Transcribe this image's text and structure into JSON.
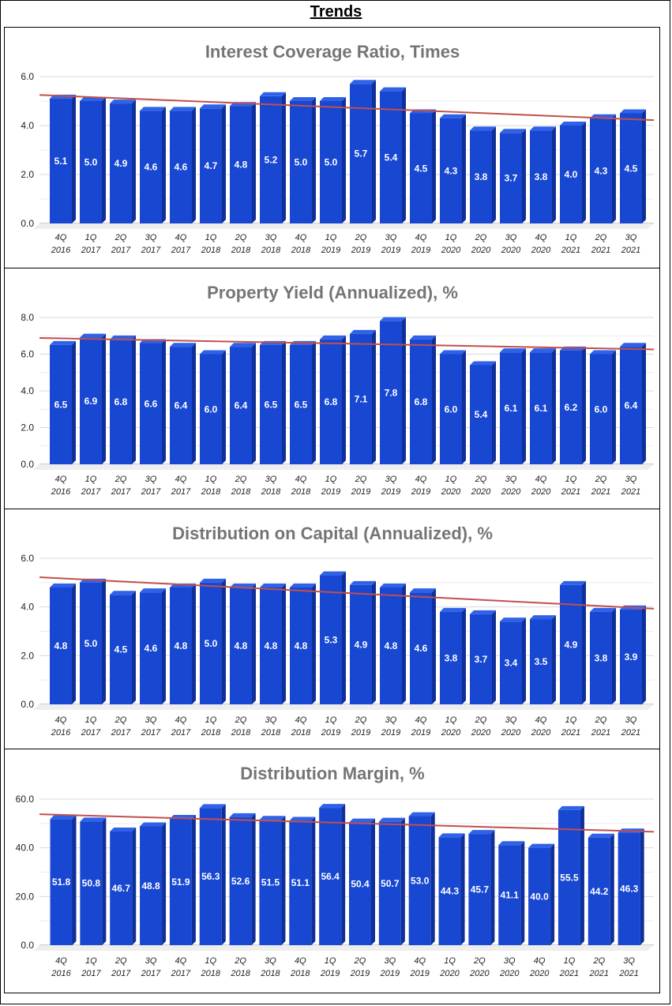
{
  "page": {
    "title": "Trends"
  },
  "colors": {
    "bar_front": "#1847d1",
    "bar_top": "#2f62e8",
    "bar_side": "#0f2f99",
    "trend": "#c0504d",
    "grid": "#d9d9d9"
  },
  "quarters": [
    [
      "4Q",
      "2016"
    ],
    [
      "1Q",
      "2017"
    ],
    [
      "2Q",
      "2017"
    ],
    [
      "3Q",
      "2017"
    ],
    [
      "4Q",
      "2017"
    ],
    [
      "1Q",
      "2018"
    ],
    [
      "2Q",
      "2018"
    ],
    [
      "3Q",
      "2018"
    ],
    [
      "4Q",
      "2018"
    ],
    [
      "1Q",
      "2019"
    ],
    [
      "2Q",
      "2019"
    ],
    [
      "3Q",
      "2019"
    ],
    [
      "4Q",
      "2019"
    ],
    [
      "1Q",
      "2020"
    ],
    [
      "2Q",
      "2020"
    ],
    [
      "3Q",
      "2020"
    ],
    [
      "4Q",
      "2020"
    ],
    [
      "1Q",
      "2021"
    ],
    [
      "2Q",
      "2021"
    ],
    [
      "3Q",
      "2021"
    ]
  ],
  "chart_data": [
    {
      "type": "bar",
      "title": "Interest Coverage Ratio, Times",
      "ylim": [
        0,
        6
      ],
      "yticks": [
        "0.0",
        "2.0",
        "4.0",
        "6.0"
      ],
      "ytick_values": [
        0,
        2,
        4,
        6
      ],
      "values": [
        5.1,
        5.0,
        4.9,
        4.6,
        4.6,
        4.7,
        4.8,
        5.2,
        5.0,
        5.0,
        5.7,
        5.4,
        4.5,
        4.3,
        3.8,
        3.7,
        3.8,
        4.0,
        4.3,
        4.5
      ],
      "labels": [
        "5.1",
        "5.0",
        "4.9",
        "4.6",
        "4.6",
        "4.7",
        "4.8",
        "5.2",
        "5.0",
        "5.0",
        "5.7",
        "5.4",
        "4.5",
        "4.3",
        "3.8",
        "3.7",
        "3.8",
        "4.0",
        "4.3",
        "4.5"
      ],
      "trendline": [
        5.25,
        4.22
      ]
    },
    {
      "type": "bar",
      "title": "Property Yield (Annualized), %",
      "ylim": [
        0,
        8
      ],
      "yticks": [
        "0.0",
        "2.0",
        "4.0",
        "6.0",
        "8.0"
      ],
      "ytick_values": [
        0,
        2,
        4,
        6,
        8
      ],
      "values": [
        6.5,
        6.9,
        6.8,
        6.6,
        6.4,
        6.0,
        6.4,
        6.5,
        6.5,
        6.8,
        7.1,
        7.8,
        6.8,
        6.0,
        5.4,
        6.1,
        6.1,
        6.2,
        6.0,
        6.4
      ],
      "labels": [
        "6.5",
        "6.9",
        "6.8",
        "6.6",
        "6.4",
        "6.0",
        "6.4",
        "6.5",
        "6.5",
        "6.8",
        "7.1",
        "7.8",
        "6.8",
        "6.0",
        "5.4",
        "6.1",
        "6.1",
        "6.2",
        "6.0",
        "6.4"
      ],
      "trendline": [
        6.88,
        6.26
      ]
    },
    {
      "type": "bar",
      "title": "Distribution on Capital (Annualized), %",
      "ylim": [
        0,
        6
      ],
      "yticks": [
        "0.0",
        "2.0",
        "4.0",
        "6.0"
      ],
      "ytick_values": [
        0,
        2,
        4,
        6
      ],
      "values": [
        4.8,
        5.0,
        4.5,
        4.6,
        4.8,
        5.0,
        4.8,
        4.8,
        4.8,
        5.3,
        4.9,
        4.8,
        4.6,
        3.8,
        3.7,
        3.4,
        3.5,
        4.9,
        3.8,
        3.9
      ],
      "labels": [
        "4.8",
        "5.0",
        "4.5",
        "4.6",
        "4.8",
        "5.0",
        "4.8",
        "4.8",
        "4.8",
        "5.3",
        "4.9",
        "4.8",
        "4.6",
        "3.8",
        "3.7",
        "3.4",
        "3.5",
        "4.9",
        "3.8",
        "3.9"
      ],
      "trendline": [
        5.22,
        3.93
      ]
    },
    {
      "type": "bar",
      "title": "Distribution Margin, %",
      "ylim": [
        0,
        60
      ],
      "yticks": [
        "0.0",
        "20.0",
        "40.0",
        "60.0"
      ],
      "ytick_values": [
        0,
        20,
        40,
        60
      ],
      "values": [
        51.8,
        50.8,
        46.7,
        48.8,
        51.9,
        56.3,
        52.6,
        51.5,
        51.1,
        56.4,
        50.4,
        50.7,
        53.0,
        44.3,
        45.7,
        41.1,
        40.0,
        55.5,
        44.2,
        46.3
      ],
      "labels": [
        "51.8",
        "50.8",
        "46.7",
        "48.8",
        "51.9",
        "56.3",
        "52.6",
        "51.5",
        "51.1",
        "56.4",
        "50.4",
        "50.7",
        "53.0",
        "44.3",
        "45.7",
        "41.1",
        "40.0",
        "55.5",
        "44.2",
        "46.3"
      ],
      "trendline": [
        53.8,
        46.6
      ]
    }
  ]
}
